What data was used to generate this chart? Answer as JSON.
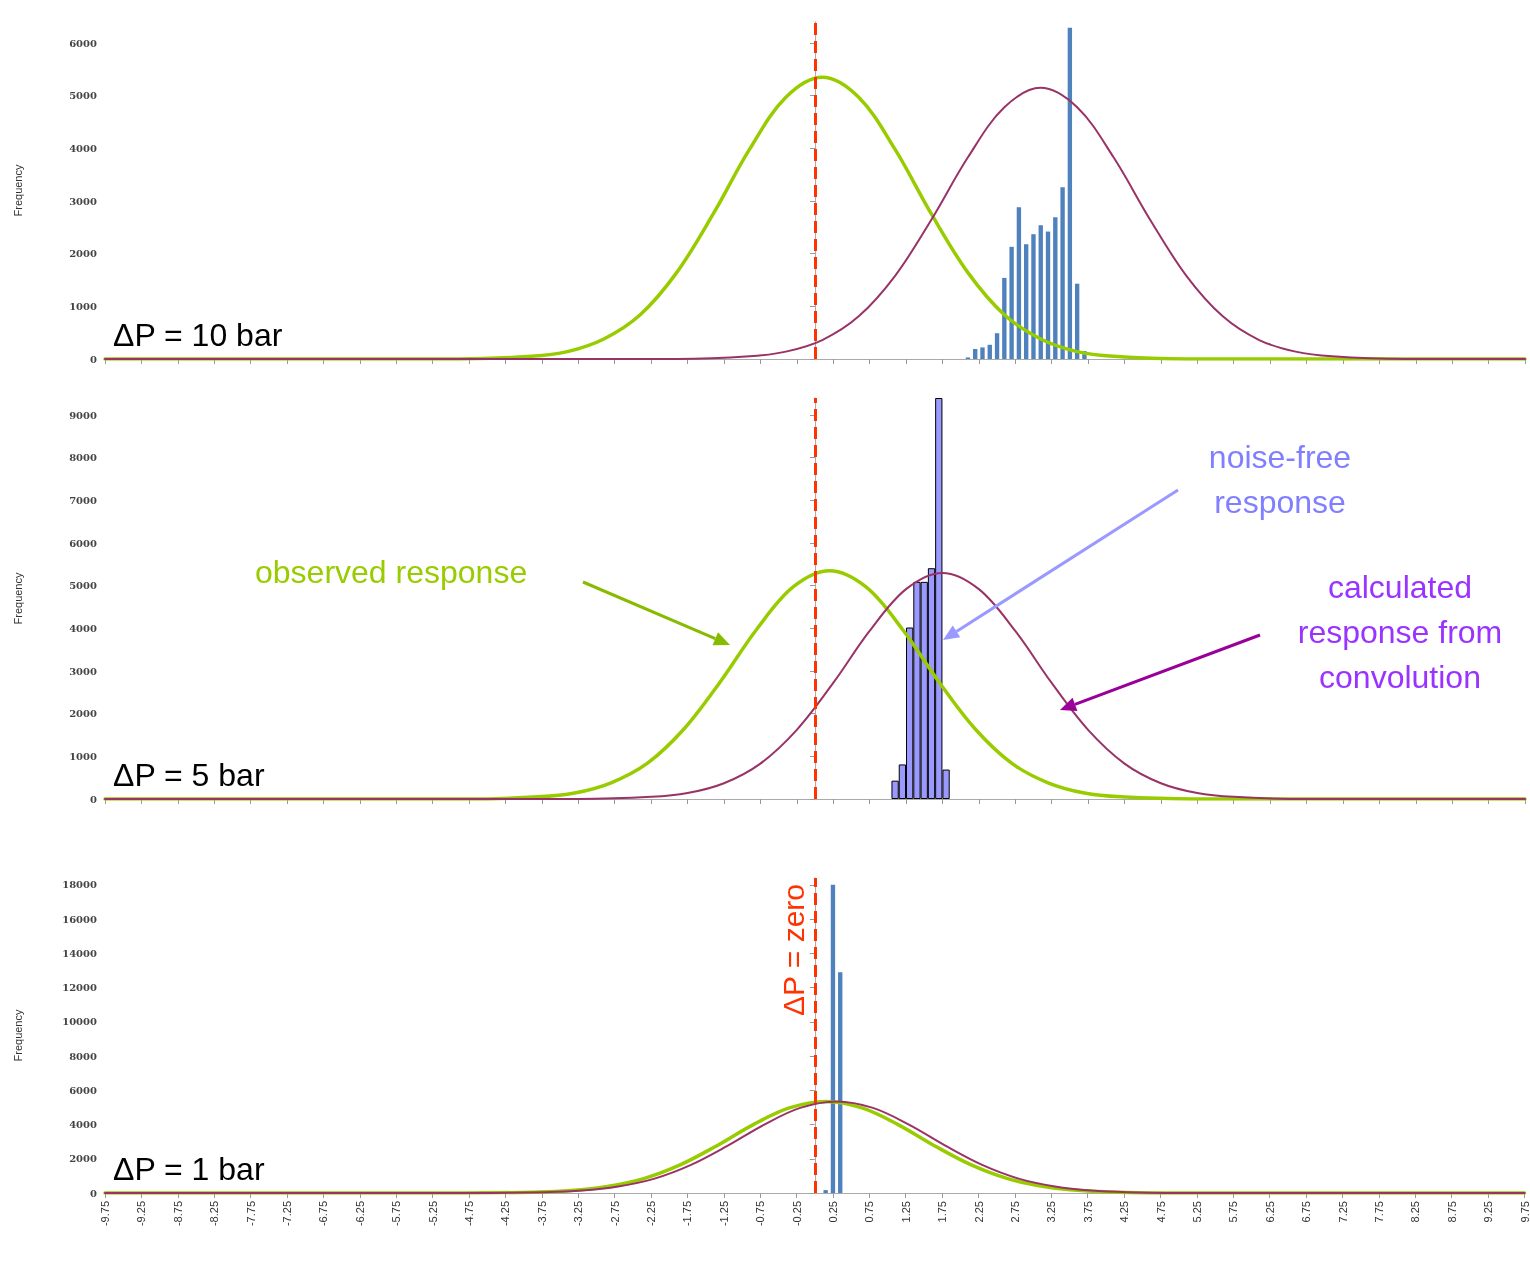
{
  "chart_data": [
    {
      "type": "line",
      "ylabel": "Frequency",
      "xlim": [
        -9.75,
        9.75
      ],
      "xticks": [
        -9.75,
        -9.25,
        -8.75,
        -8.25,
        -7.75,
        -7.25,
        -6.75,
        -6.25,
        -5.75,
        -5.25,
        -4.75,
        -4.25,
        -3.75,
        -3.25,
        -2.75,
        -2.25,
        -1.75,
        -1.25,
        -0.75,
        -0.25,
        0.25,
        0.75,
        1.25,
        1.75,
        2.25,
        2.75,
        3.25,
        3.75,
        4.25,
        4.75,
        5.25,
        5.75,
        6.25,
        6.75,
        7.25,
        7.75,
        8.25,
        8.75,
        9.25,
        9.75
      ],
      "ylim": [
        0,
        6400
      ],
      "yticks": [
        0,
        1000,
        2000,
        3000,
        4000,
        5000,
        6000
      ],
      "tick_labels": "y",
      "marker": "none",
      "series": [
        {
          "type": "bar",
          "color": "#4f81bd",
          "x": [
            2.1,
            2.2,
            2.3,
            2.4,
            2.5,
            2.6,
            2.7,
            2.8,
            2.9,
            3.0,
            3.1,
            3.2,
            3.3,
            3.4,
            3.5,
            3.6,
            3.7
          ],
          "values": [
            30,
            190,
            220,
            270,
            490,
            1540,
            2130,
            2880,
            2180,
            2370,
            2540,
            2420,
            2690,
            3260,
            6290,
            1430,
            150
          ]
        },
        {
          "color": "#99cc00",
          "x": [
            -9.75,
            -4.9,
            -3.9,
            -3.4,
            -2.9,
            -2.4,
            -1.9,
            -1.4,
            -0.9,
            -0.4,
            0.1,
            0.6,
            1.1,
            1.6,
            2.1,
            2.6,
            3.1,
            3.6,
            4.1,
            5.1,
            9.75
          ],
          "values": [
            0,
            0,
            50,
            140,
            380,
            840,
            1640,
            2750,
            3980,
            4970,
            5350,
            4970,
            3980,
            2750,
            1640,
            840,
            380,
            140,
            50,
            0,
            0
          ]
        },
        {
          "color": "#993366",
          "x": [
            -9.75,
            -1.9,
            -0.9,
            -0.4,
            0.1,
            0.6,
            1.1,
            1.6,
            2.1,
            2.6,
            3.1,
            3.6,
            4.1,
            4.6,
            5.1,
            5.6,
            6.1,
            6.6,
            7.1,
            8.1,
            9.75
          ],
          "values": [
            0,
            0,
            50,
            140,
            360,
            810,
            1580,
            2650,
            3830,
            4780,
            5150,
            4780,
            3830,
            2650,
            1580,
            810,
            360,
            140,
            50,
            0,
            0
          ]
        }
      ],
      "ref_lines": [
        {
          "axis": "x",
          "value": 0,
          "color": "#ff3300",
          "line_style": "dashed"
        }
      ],
      "annotations": [
        "ΔP = 10 bar"
      ]
    },
    {
      "type": "line",
      "ylabel": "Frequency",
      "xlim": [
        -9.75,
        9.75
      ],
      "xticks": [
        -9.75,
        -9.25,
        -8.75,
        -8.25,
        -7.75,
        -7.25,
        -6.75,
        -6.25,
        -5.75,
        -5.25,
        -4.75,
        -4.25,
        -3.75,
        -3.25,
        -2.75,
        -2.25,
        -1.75,
        -1.25,
        -0.75,
        -0.25,
        0.25,
        0.75,
        1.25,
        1.75,
        2.25,
        2.75,
        3.25,
        3.75,
        4.25,
        4.75,
        5.25,
        5.75,
        6.25,
        6.75,
        7.25,
        7.75,
        8.25,
        8.75,
        9.25,
        9.75
      ],
      "ylim": [
        0,
        9400
      ],
      "yticks": [
        0,
        1000,
        2000,
        3000,
        4000,
        5000,
        6000,
        7000,
        8000,
        9000
      ],
      "tick_labels": "y",
      "marker": "none",
      "series": [
        {
          "type": "bar",
          "color": "#9999ff",
          "x": [
            1.1,
            1.2,
            1.3,
            1.4,
            1.5,
            1.6,
            1.7,
            1.8
          ],
          "values": [
            430,
            810,
            4020,
            5090,
            5090,
            5410,
            9400,
            690
          ]
        },
        {
          "color": "#99cc00",
          "x": [
            -9.75,
            -4.8,
            -3.8,
            -3.3,
            -2.8,
            -2.3,
            -1.8,
            -1.3,
            -0.8,
            -0.3,
            0.2,
            0.7,
            1.2,
            1.7,
            2.2,
            2.7,
            3.2,
            3.7,
            4.2,
            5.2,
            9.75
          ],
          "values": [
            0,
            0,
            50,
            140,
            380,
            840,
            1640,
            2750,
            3980,
            4970,
            5350,
            4970,
            3980,
            2750,
            1640,
            840,
            380,
            140,
            50,
            0,
            0
          ]
        },
        {
          "color": "#993366",
          "x": [
            -9.75,
            -3.25,
            -2.25,
            -1.75,
            -1.25,
            -0.75,
            -0.25,
            0.25,
            0.75,
            1.25,
            1.75,
            2.25,
            2.75,
            3.25,
            3.75,
            4.25,
            4.75,
            5.25,
            5.75,
            6.75,
            9.75
          ],
          "values": [
            0,
            0,
            50,
            140,
            370,
            830,
            1620,
            2720,
            3940,
            4920,
            5300,
            4920,
            3940,
            2720,
            1620,
            830,
            370,
            140,
            50,
            0,
            0
          ]
        }
      ],
      "ref_lines": [
        {
          "axis": "x",
          "value": 0,
          "color": "#ff3300",
          "line_style": "dashed"
        }
      ],
      "annotations": [
        "ΔP = 5 bar",
        "observed response",
        "noise-free response",
        "calculated response from convolution"
      ]
    },
    {
      "type": "line",
      "ylabel": "Frequency",
      "xlim": [
        -9.75,
        9.75
      ],
      "xticks": [
        -9.75,
        -9.25,
        -8.75,
        -8.25,
        -7.75,
        -7.25,
        -6.75,
        -6.25,
        -5.75,
        -5.25,
        -4.75,
        -4.25,
        -3.75,
        -3.25,
        -2.75,
        -2.25,
        -1.75,
        -1.25,
        -0.75,
        -0.25,
        0.25,
        0.75,
        1.25,
        1.75,
        2.25,
        2.75,
        3.25,
        3.75,
        4.25,
        4.75,
        5.25,
        5.75,
        6.25,
        6.75,
        7.25,
        7.75,
        8.25,
        8.75,
        9.25,
        9.75
      ],
      "ylim": [
        0,
        18400
      ],
      "yticks": [
        0,
        2000,
        4000,
        6000,
        8000,
        10000,
        12000,
        14000,
        16000,
        18000
      ],
      "marker": "none",
      "series": [
        {
          "type": "bar",
          "color": "#4f81bd",
          "x": [
            0.15,
            0.25,
            0.35
          ],
          "values": [
            170,
            18000,
            12900
          ]
        },
        {
          "color": "#99cc00",
          "x": [
            -9.75,
            -4.85,
            -3.85,
            -3.35,
            -2.85,
            -2.35,
            -1.85,
            -1.35,
            -0.85,
            -0.35,
            0.15,
            0.65,
            1.15,
            1.65,
            2.15,
            2.65,
            3.15,
            3.65,
            4.15,
            5.15,
            9.75
          ],
          "values": [
            0,
            0,
            50,
            140,
            380,
            840,
            1640,
            2750,
            3980,
            4970,
            5350,
            4970,
            3980,
            2750,
            1640,
            840,
            380,
            140,
            50,
            0,
            0
          ]
        },
        {
          "color": "#993366",
          "x": [
            -9.75,
            -4.7,
            -3.7,
            -3.2,
            -2.7,
            -2.2,
            -1.7,
            -1.2,
            -0.7,
            -0.2,
            0.3,
            0.8,
            1.3,
            1.8,
            2.3,
            2.8,
            3.3,
            3.8,
            4.3,
            5.3,
            9.75
          ],
          "values": [
            0,
            0,
            50,
            140,
            380,
            840,
            1640,
            2750,
            3980,
            4970,
            5350,
            4970,
            3980,
            2750,
            1640,
            840,
            380,
            140,
            50,
            0,
            0
          ]
        }
      ],
      "ref_lines": [
        {
          "axis": "x",
          "value": 0,
          "color": "#ff3300",
          "line_style": "dashed",
          "label": "ΔP = zero"
        }
      ],
      "annotations": [
        "ΔP = 1 bar"
      ]
    }
  ]
}
